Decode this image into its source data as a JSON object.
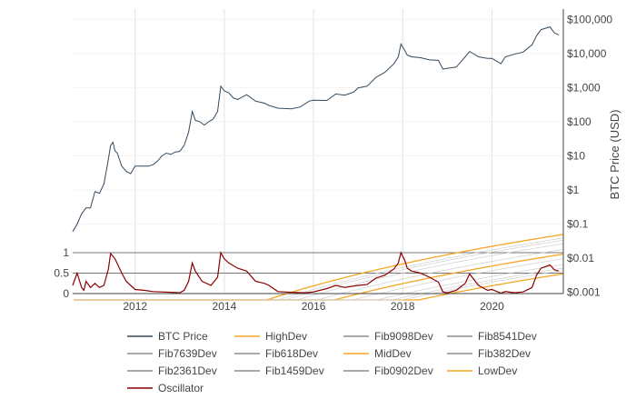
{
  "chart_data": {
    "type": "line",
    "title": "",
    "xlabel": "",
    "ylabel": "BTC Price (USD)",
    "x_axis": {
      "range": [
        2010.6,
        2021.6
      ],
      "ticks": [
        2012,
        2014,
        2016,
        2018,
        2020
      ],
      "tick_labels": [
        "2012",
        "2014",
        "2016",
        "2018",
        "2020"
      ]
    },
    "y_axis_price": {
      "scale": "log",
      "range": [
        0.0006,
        200000
      ],
      "ticks": [
        0.001,
        0.01,
        0.1,
        1,
        10,
        100,
        1000,
        10000,
        100000
      ],
      "tick_labels": [
        "$0.001",
        "$0.01",
        "$0.1",
        "$1",
        "$10",
        "$100",
        "$1,000",
        "$10,000",
        "$100,000"
      ]
    },
    "y_axis_oscillator": {
      "range": [
        0,
        1
      ],
      "ticks": [
        0,
        0.5,
        1
      ],
      "tick_labels": [
        "0",
        "0.5",
        "1"
      ]
    },
    "grid": true,
    "legend_position": "bottom",
    "legend": [
      {
        "name": "BTC Price",
        "color": "#34495e"
      },
      {
        "name": "HighDev",
        "color": "#f5a623"
      },
      {
        "name": "Fib9098Dev",
        "color": "#555555"
      },
      {
        "name": "Fib8541Dev",
        "color": "#555555"
      },
      {
        "name": "Fib7639Dev",
        "color": "#555555"
      },
      {
        "name": "Fib618Dev",
        "color": "#555555"
      },
      {
        "name": "MidDev",
        "color": "#f5a623"
      },
      {
        "name": "Fib382Dev",
        "color": "#555555"
      },
      {
        "name": "Fib2361Dev",
        "color": "#555555"
      },
      {
        "name": "Fib1459Dev",
        "color": "#555555"
      },
      {
        "name": "Fib0902Dev",
        "color": "#555555"
      },
      {
        "name": "LowDev",
        "color": "#f5a623"
      },
      {
        "name": "Oscillator",
        "color": "#8b0000"
      }
    ],
    "bands": {
      "time_shift": 2008.85,
      "mid_coef": [
        -19.6,
        6.0
      ],
      "high_offset": 1.33,
      "low_offset": -1.33,
      "fib_levels": [
        0.9098,
        0.8541,
        0.7639,
        0.618,
        0.382,
        0.2361,
        0.1459,
        0.0902
      ]
    },
    "series": [
      {
        "name": "BTC Price",
        "x": [
          2010.6,
          2010.7,
          2010.8,
          2010.9,
          2011.0,
          2011.1,
          2011.2,
          2011.3,
          2011.4,
          2011.45,
          2011.5,
          2011.55,
          2011.6,
          2011.7,
          2011.8,
          2011.9,
          2012.0,
          2012.1,
          2012.2,
          2012.3,
          2012.4,
          2012.5,
          2012.6,
          2012.7,
          2012.8,
          2012.9,
          2013.0,
          2013.1,
          2013.2,
          2013.28,
          2013.35,
          2013.45,
          2013.55,
          2013.65,
          2013.75,
          2013.85,
          2013.92,
          2014.0,
          2014.1,
          2014.2,
          2014.3,
          2014.5,
          2014.7,
          2014.9,
          2015.0,
          2015.2,
          2015.5,
          2015.7,
          2015.9,
          2016.0,
          2016.3,
          2016.5,
          2016.7,
          2016.9,
          2017.0,
          2017.2,
          2017.4,
          2017.6,
          2017.8,
          2017.9,
          2017.96,
          2018.05,
          2018.1,
          2018.2,
          2018.4,
          2018.6,
          2018.8,
          2018.9,
          2019.0,
          2019.2,
          2019.4,
          2019.5,
          2019.7,
          2019.9,
          2020.0,
          2020.2,
          2020.3,
          2020.5,
          2020.7,
          2020.9,
          2021.0,
          2021.1,
          2021.3,
          2021.4,
          2021.5
        ],
        "y": [
          0.06,
          0.1,
          0.2,
          0.3,
          0.3,
          0.9,
          0.8,
          1.5,
          8,
          20,
          25,
          14,
          12,
          5,
          3.5,
          3,
          5,
          5,
          5,
          5,
          5.5,
          7,
          10,
          12,
          11,
          13,
          13.5,
          20,
          50,
          200,
          110,
          100,
          80,
          100,
          120,
          200,
          1100,
          800,
          700,
          500,
          450,
          620,
          400,
          350,
          300,
          250,
          240,
          270,
          400,
          430,
          420,
          650,
          600,
          740,
          980,
          1100,
          2000,
          2800,
          5000,
          8000,
          19000,
          12000,
          9000,
          8000,
          7500,
          6500,
          6300,
          3500,
          3700,
          4000,
          8000,
          11500,
          8000,
          7200,
          7200,
          5000,
          8000,
          9500,
          11000,
          18000,
          33000,
          50000,
          60000,
          40000,
          35000
        ]
      },
      {
        "name": "Oscillator",
        "x": [
          2010.6,
          2010.7,
          2010.8,
          2010.85,
          2010.9,
          2011.0,
          2011.1,
          2011.2,
          2011.3,
          2011.4,
          2011.45,
          2011.55,
          2011.7,
          2011.8,
          2011.9,
          2012.0,
          2012.2,
          2012.4,
          2012.6,
          2012.8,
          2013.0,
          2013.1,
          2013.2,
          2013.28,
          2013.35,
          2013.5,
          2013.7,
          2013.85,
          2013.92,
          2014.0,
          2014.1,
          2014.3,
          2014.5,
          2014.7,
          2014.9,
          2015.0,
          2015.2,
          2015.5,
          2015.8,
          2016.0,
          2016.3,
          2016.5,
          2016.7,
          2017.0,
          2017.2,
          2017.4,
          2017.6,
          2017.8,
          2017.9,
          2017.96,
          2018.05,
          2018.1,
          2018.2,
          2018.4,
          2018.6,
          2018.8,
          2018.9,
          2019.0,
          2019.2,
          2019.4,
          2019.5,
          2019.7,
          2019.9,
          2020.0,
          2020.2,
          2020.3,
          2020.5,
          2020.7,
          2020.9,
          2021.0,
          2021.1,
          2021.3,
          2021.4,
          2021.5
        ],
        "y": [
          0.2,
          0.5,
          0.15,
          0.08,
          0.3,
          0.15,
          0.25,
          0.15,
          0.2,
          0.6,
          0.98,
          0.85,
          0.5,
          0.3,
          0.2,
          0.1,
          0.08,
          0.05,
          0.04,
          0.03,
          0.02,
          0.08,
          0.3,
          0.75,
          0.55,
          0.3,
          0.2,
          0.4,
          1.0,
          0.85,
          0.75,
          0.62,
          0.55,
          0.3,
          0.25,
          0.2,
          0.05,
          0.03,
          0.02,
          0.04,
          0.12,
          0.2,
          0.15,
          0.2,
          0.22,
          0.38,
          0.45,
          0.6,
          0.75,
          1.0,
          0.8,
          0.62,
          0.55,
          0.5,
          0.4,
          0.28,
          0.04,
          0.02,
          0.08,
          0.25,
          0.48,
          0.2,
          0.08,
          0.1,
          0.01,
          0.05,
          0.02,
          0.04,
          0.15,
          0.45,
          0.62,
          0.7,
          0.58,
          0.55
        ]
      }
    ]
  }
}
